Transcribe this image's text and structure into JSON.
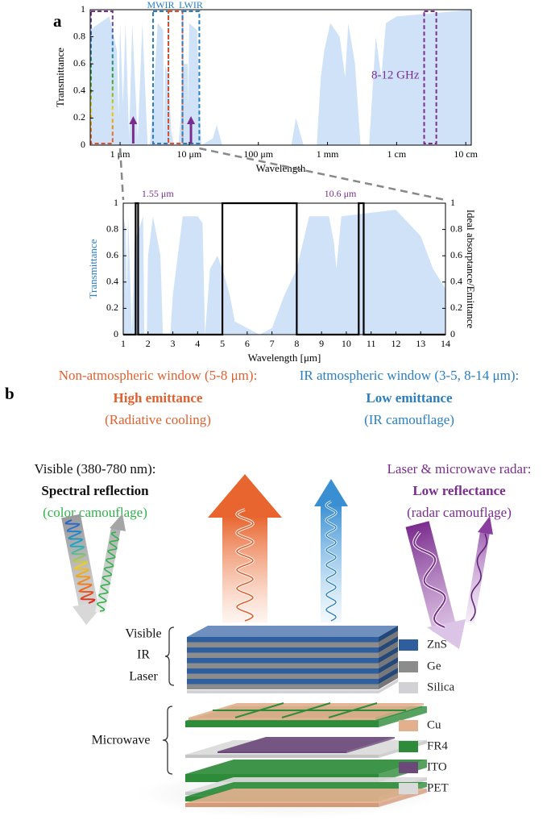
{
  "chart_data": [
    {
      "type": "area",
      "panel": "a",
      "xscale": "log",
      "xlabel": "Wavelength",
      "ylabel": "Transmittance",
      "xlim": [
        0.37,
        120000
      ],
      "ylim": [
        0,
        1
      ],
      "xticks": [
        {
          "value": 1,
          "label": "1 μm"
        },
        {
          "value": 10,
          "label": "10 μm"
        },
        {
          "value": 100,
          "label": "100 μm"
        },
        {
          "value": 1000,
          "label": "1 mm"
        },
        {
          "value": 10000,
          "label": "1 cm"
        },
        {
          "value": 100000,
          "label": "10 cm"
        }
      ],
      "yticks": [
        0,
        0.2,
        0.4,
        0.6,
        0.8,
        1
      ],
      "series": [
        {
          "style": "area",
          "color": "#cfe2f8",
          "x": [
            0.37,
            0.5,
            0.7,
            0.9,
            0.95,
            1.0,
            1.1,
            1.2,
            1.35,
            1.5,
            1.8,
            2.1,
            2.5,
            2.7,
            3.0,
            3.5,
            4.2,
            4.3,
            4.5,
            5.0,
            5.5,
            6.0,
            7.0,
            7.5,
            8.0,
            9.5,
            9.7,
            10,
            13,
            14,
            15,
            22,
            25,
            30,
            300,
            350,
            450,
            700,
            800,
            900,
            1100,
            1500,
            1800,
            2000,
            2500,
            3000,
            4000,
            5000,
            6000,
            7000,
            10000,
            120000
          ],
          "values": [
            0.85,
            0.9,
            0.95,
            0.7,
            0.2,
            0.9,
            0.3,
            0.9,
            0.05,
            0.9,
            0.05,
            0.9,
            0.0,
            0.0,
            0.3,
            0.9,
            0.85,
            0.0,
            0.6,
            0.5,
            0.1,
            0.0,
            0.0,
            0.2,
            0.6,
            0.6,
            0.3,
            0.9,
            0.85,
            0.3,
            0.0,
            0.05,
            0.15,
            0.0,
            0.0,
            0.2,
            0.0,
            0.0,
            0.5,
            0.7,
            0.9,
            0.8,
            0.5,
            0.9,
            0.6,
            0.0,
            0.0,
            0.8,
            0.5,
            0.9,
            0.95,
            1.0
          ]
        }
      ],
      "regions": [
        {
          "x": [
            0.38,
            0.78
          ],
          "color": [
            "#7b2d8e",
            "#2a7fc0",
            "#2ca02c",
            "#f5d000",
            "#e0502a"
          ]
        },
        {
          "label": "MWIR",
          "x": [
            3,
            5
          ],
          "color": "#2a7fc0"
        },
        {
          "x": [
            5,
            8
          ],
          "color": "#e0502a"
        },
        {
          "label": "LWIR",
          "x": [
            8,
            14
          ],
          "color": "#2a7fc0"
        },
        {
          "label": "8-12 GHz",
          "x": [
            25000,
            37500
          ],
          "color": "#7b2d8e"
        }
      ],
      "arrows": [
        {
          "x": 1.55,
          "color": "#7b2d8e"
        },
        {
          "x": 10.6,
          "color": "#7b2d8e"
        }
      ]
    },
    {
      "type": "area",
      "xlabel": "Wavelength [μm]",
      "ylabel": "Transmittance",
      "ylabel_color": "#2a7fc0",
      "y2label": "Ideal absorptance/Emittance",
      "xlim": [
        1,
        14
      ],
      "ylim": [
        0,
        1
      ],
      "y2lim": [
        0,
        1
      ],
      "xticks": [
        1,
        2,
        3,
        4,
        5,
        6,
        7,
        8,
        9,
        10,
        11,
        12,
        13,
        14
      ],
      "yticks": [
        0,
        0.2,
        0.4,
        0.6,
        0.8,
        1
      ],
      "y2ticks": [
        0,
        0.2,
        0.4,
        0.6,
        0.8,
        1
      ],
      "series": [
        {
          "style": "area",
          "color": "#cfe2f8",
          "x": [
            1,
            1.1,
            1.15,
            1.2,
            1.35,
            1.45,
            1.8,
            1.85,
            1.95,
            2.0,
            2.2,
            2.5,
            2.6,
            2.9,
            3.0,
            3.4,
            4.0,
            4.2,
            4.3,
            4.5,
            4.8,
            5.0,
            5.3,
            5.5,
            6.0,
            6.5,
            7.0,
            7.5,
            8.0,
            8.5,
            9.3,
            9.5,
            9.6,
            9.8,
            12,
            13,
            13.5,
            14
          ],
          "values": [
            0.9,
            0.8,
            0.3,
            0.9,
            0.0,
            0.7,
            0.9,
            0.0,
            0.0,
            0.6,
            0.9,
            0.6,
            0.0,
            0.0,
            0.3,
            0.9,
            0.9,
            0.85,
            0.0,
            0.5,
            0.6,
            0.5,
            0.3,
            0.1,
            0.05,
            0.0,
            0.05,
            0.3,
            0.5,
            0.9,
            0.9,
            0.7,
            0.5,
            0.9,
            0.95,
            0.75,
            0.5,
            0.35
          ]
        },
        {
          "style": "line",
          "axis": "y2",
          "color": "#000000",
          "x": [
            1,
            1.5,
            1.5,
            1.6,
            1.6,
            5,
            5,
            8,
            8,
            10.5,
            10.5,
            10.7,
            10.7,
            14
          ],
          "values": [
            0,
            0,
            1,
            1,
            0,
            0,
            1,
            1,
            0,
            0,
            1,
            1,
            0,
            0
          ]
        }
      ],
      "annotations": [
        {
          "text": "1.55 μm",
          "x": 1.55,
          "color": "#7b2d8e"
        },
        {
          "text": "10.6 μm",
          "x": 10.6,
          "color": "#7b2d8e"
        }
      ]
    }
  ],
  "panel_b": {
    "label": "b",
    "left_header": [
      "Non-atmospheric window (5-8 μm):",
      "High emittance",
      "(Radiative cooling)"
    ],
    "right_header": [
      "IR atmospheric window (3-5, 8-14 μm):",
      "Low emittance",
      "(IR camouflage)"
    ],
    "visible": [
      "Visible (380-780 nm):",
      "Spectral reflection",
      "(color camouflage)"
    ],
    "radar": [
      "Laser & microwave radar:",
      "Low reflectance",
      "(radar camouflage)"
    ],
    "stack_labels": [
      "Visible",
      "IR",
      "Laser",
      "Microwave"
    ],
    "legend": [
      {
        "label": "ZnS",
        "color": "#2f5f9e"
      },
      {
        "label": "Ge",
        "color": "#8c8c8c"
      },
      {
        "label": "Silica",
        "color": "#d2d2d6"
      },
      {
        "label": "Cu",
        "color": "#e2b08f"
      },
      {
        "label": "FR4",
        "color": "#2e8b3a"
      },
      {
        "label": "ITO",
        "color": "#6b4a7a"
      },
      {
        "label": "PET",
        "color": "#dadada"
      }
    ]
  }
}
